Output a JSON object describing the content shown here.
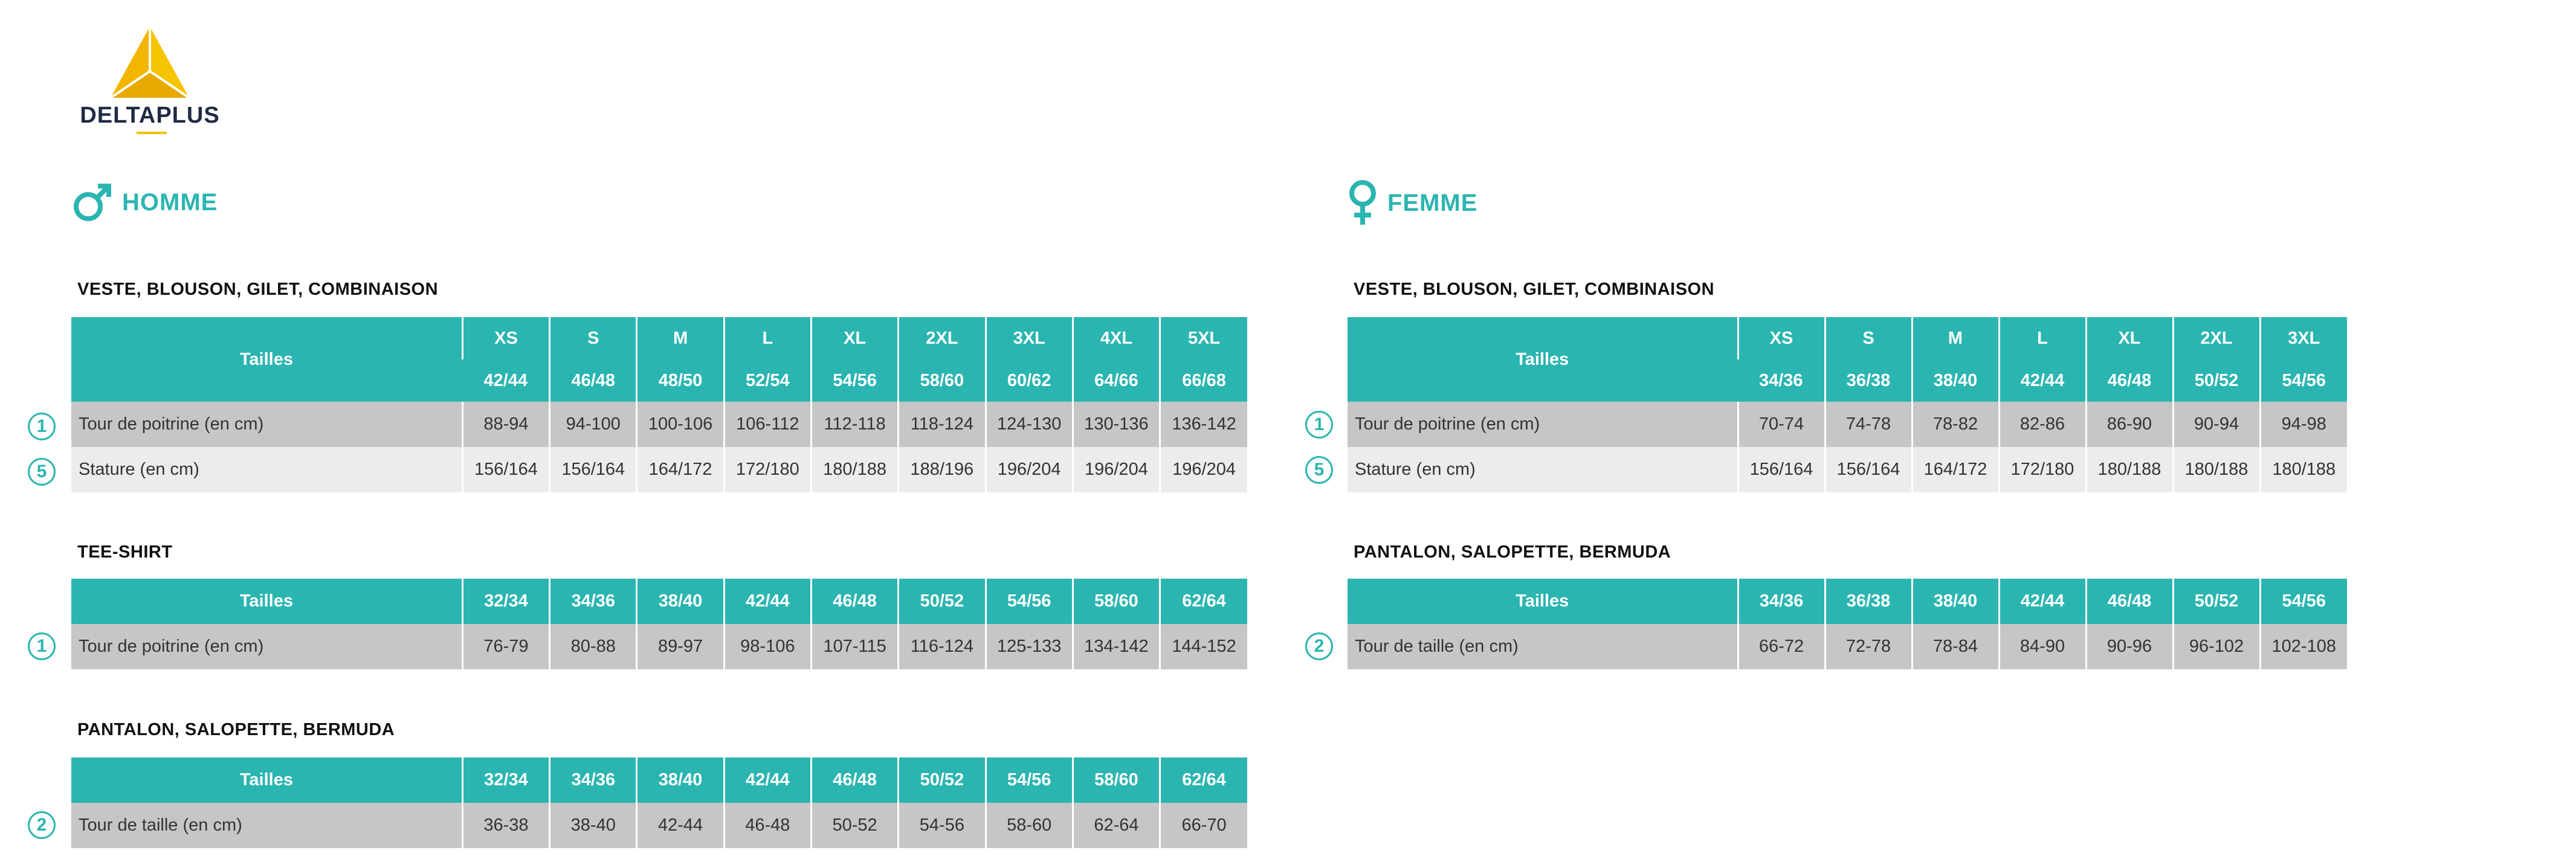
{
  "brand": {
    "name": "DELTAPLUS",
    "logo_color": "#f2c200",
    "accent": "#2bb5b1"
  },
  "homme": {
    "label": "HOMME",
    "icon": "male-symbol-icon",
    "veste": {
      "title": "VESTE, BLOUSON, GILET, COMBINAISON",
      "header_label": "Tailles",
      "sizes": [
        "XS",
        "S",
        "M",
        "L",
        "XL",
        "2XL",
        "3XL",
        "4XL",
        "5XL"
      ],
      "eu": [
        "42/44",
        "46/48",
        "48/50",
        "52/54",
        "54/56",
        "58/60",
        "60/62",
        "64/66",
        "66/68"
      ],
      "rows": [
        {
          "badge": "1",
          "label": "Tour de poitrine (en cm)",
          "values": [
            "88-94",
            "94-100",
            "100-106",
            "106-112",
            "112-118",
            "118-124",
            "124-130",
            "130-136",
            "136-142"
          ]
        },
        {
          "badge": "5",
          "label": "Stature (en cm)",
          "values": [
            "156/164",
            "156/164",
            "164/172",
            "172/180",
            "180/188",
            "188/196",
            "196/204",
            "196/204",
            "196/204"
          ]
        }
      ]
    },
    "tee": {
      "title": "TEE-SHIRT",
      "header_label": "Tailles",
      "sizes": [
        "32/34",
        "34/36",
        "38/40",
        "42/44",
        "46/48",
        "50/52",
        "54/56",
        "58/60",
        "62/64"
      ],
      "rows": [
        {
          "badge": "1",
          "label": "Tour de poitrine (en cm)",
          "values": [
            "76-79",
            "80-88",
            "89-97",
            "98-106",
            "107-115",
            "116-124",
            "125-133",
            "134-142",
            "144-152"
          ]
        }
      ]
    },
    "pantalon": {
      "title": "PANTALON, SALOPETTE, BERMUDA",
      "header_label": "Tailles",
      "sizes": [
        "32/34",
        "34/36",
        "38/40",
        "42/44",
        "46/48",
        "50/52",
        "54/56",
        "58/60",
        "62/64"
      ],
      "rows": [
        {
          "badge": "2",
          "label": "Tour de taille (en cm)",
          "values": [
            "36-38",
            "38-40",
            "42-44",
            "46-48",
            "50-52",
            "54-56",
            "58-60",
            "62-64",
            "66-70"
          ]
        }
      ]
    }
  },
  "femme": {
    "label": "FEMME",
    "icon": "female-symbol-icon",
    "veste": {
      "title": "VESTE, BLOUSON, GILET, COMBINAISON",
      "header_label": "Tailles",
      "sizes": [
        "XS",
        "S",
        "M",
        "L",
        "XL",
        "2XL",
        "3XL"
      ],
      "eu": [
        "34/36",
        "36/38",
        "38/40",
        "42/44",
        "46/48",
        "50/52",
        "54/56"
      ],
      "rows": [
        {
          "badge": "1",
          "label": "Tour de poitrine (en cm)",
          "values": [
            "70-74",
            "74-78",
            "78-82",
            "82-86",
            "86-90",
            "90-94",
            "94-98"
          ]
        },
        {
          "badge": "5",
          "label": "Stature (en cm)",
          "values": [
            "156/164",
            "156/164",
            "164/172",
            "172/180",
            "180/188",
            "180/188",
            "180/188"
          ]
        }
      ]
    },
    "pantalon": {
      "title": "PANTALON, SALOPETTE, BERMUDA",
      "header_label": "Tailles",
      "sizes": [
        "34/36",
        "36/38",
        "38/40",
        "42/44",
        "46/48",
        "50/52",
        "54/56"
      ],
      "rows": [
        {
          "badge": "2",
          "label": "Tour de taille (en cm)",
          "values": [
            "66-72",
            "72-78",
            "78-84",
            "84-90",
            "90-96",
            "96-102",
            "102-108"
          ]
        }
      ]
    }
  }
}
